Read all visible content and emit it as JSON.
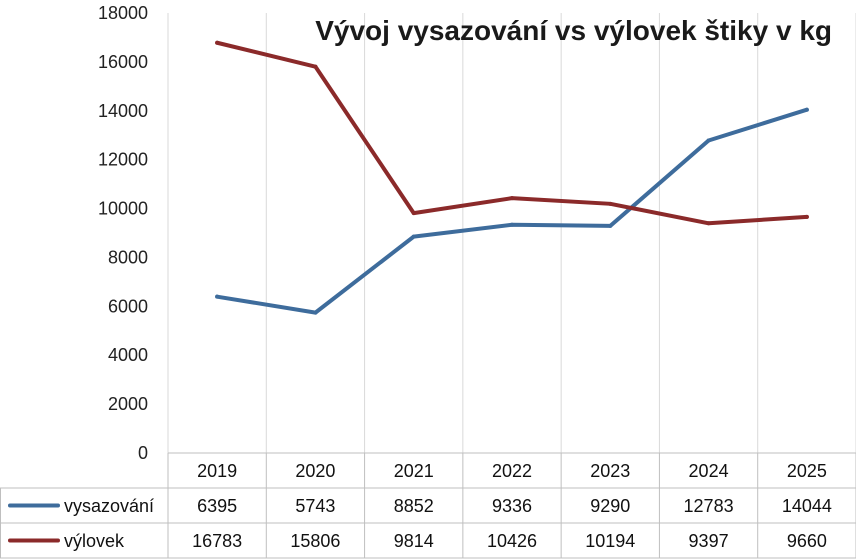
{
  "chart_data": {
    "type": "line",
    "title": "Vývoj vysazování vs výlovek štiky v kg",
    "categories": [
      "2019",
      "2020",
      "2021",
      "2022",
      "2023",
      "2024",
      "2025"
    ],
    "series": [
      {
        "name": "vysazování",
        "color": "#3e6c9c",
        "values": [
          6395,
          5743,
          8852,
          9336,
          9290,
          12783,
          14044
        ]
      },
      {
        "name": "výlovek",
        "color": "#8b2a2a",
        "values": [
          16783,
          15806,
          9814,
          10426,
          10194,
          9397,
          9660
        ]
      }
    ],
    "ylim": [
      0,
      18000
    ],
    "y_ticks": [
      "0",
      "2000",
      "4000",
      "6000",
      "8000",
      "10000",
      "12000",
      "14000",
      "16000",
      "18000"
    ],
    "grid": "vertical",
    "legend": "data-table-below"
  }
}
